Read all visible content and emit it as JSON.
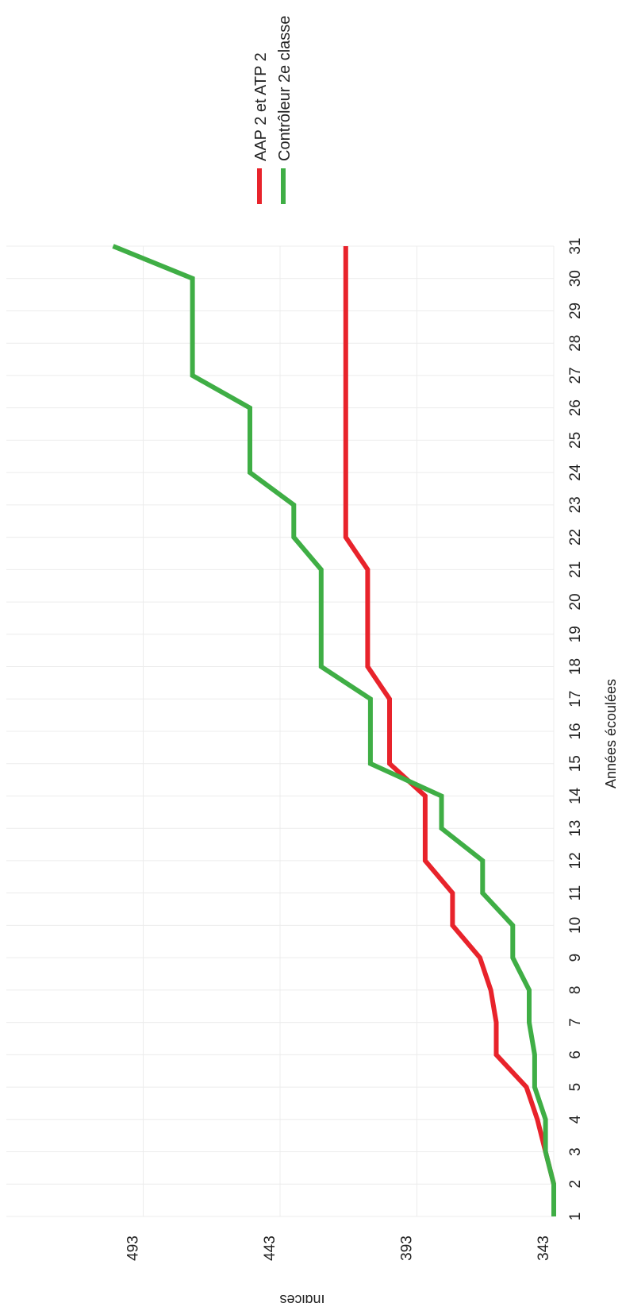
{
  "chart_data": {
    "type": "line",
    "orientation": "rotated-90-cw",
    "xlabel": "Années écoulées",
    "ylabel": "Indices",
    "x": [
      1,
      2,
      3,
      4,
      5,
      6,
      7,
      8,
      9,
      10,
      11,
      12,
      13,
      14,
      15,
      16,
      17,
      18,
      19,
      20,
      21,
      22,
      23,
      24,
      25,
      26,
      27,
      28,
      29,
      30,
      31
    ],
    "xlim": [
      1,
      31
    ],
    "ylim": [
      343,
      543
    ],
    "yticks": [
      343,
      393,
      443,
      493
    ],
    "grid": true,
    "legend_position": "right",
    "series": [
      {
        "name": "AAP 2 et ATP 2",
        "color": "#e8232b",
        "values": [
          343,
          343,
          346,
          349,
          353,
          364,
          364,
          366,
          370,
          380,
          380,
          390,
          390,
          390,
          403,
          403,
          403,
          411,
          411,
          411,
          411,
          419,
          419,
          419,
          419,
          419,
          419,
          419,
          419,
          419,
          419
        ]
      },
      {
        "name": "Contrôleur 2e classe",
        "color": "#3fae45",
        "values": [
          343,
          343,
          346,
          346,
          350,
          350,
          352,
          352,
          358,
          358,
          369,
          369,
          384,
          384,
          410,
          410,
          410,
          428,
          428,
          428,
          428,
          438,
          438,
          454,
          454,
          454,
          475,
          475,
          475,
          475,
          504
        ]
      }
    ]
  }
}
